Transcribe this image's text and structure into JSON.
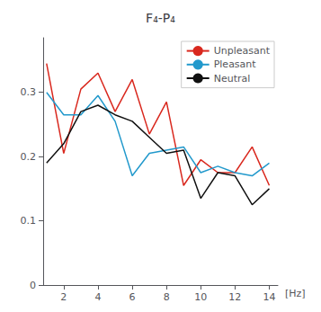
{
  "chart_data": {
    "type": "line",
    "title": "F₄-P₄",
    "x_label": "[Hz]",
    "x": [
      1,
      2,
      3,
      4,
      5,
      6,
      7,
      8,
      9,
      10,
      11,
      12,
      13,
      14
    ],
    "series": [
      {
        "name": "Unpleasant",
        "color": "#d9281e",
        "values": [
          0.345,
          0.205,
          0.305,
          0.33,
          0.27,
          0.32,
          0.235,
          0.285,
          0.155,
          0.195,
          0.175,
          0.175,
          0.215,
          0.155
        ]
      },
      {
        "name": "Pleasant",
        "color": "#2299cc",
        "values": [
          0.3,
          0.265,
          0.265,
          0.295,
          0.255,
          0.17,
          0.205,
          0.21,
          0.215,
          0.175,
          0.185,
          0.175,
          0.17,
          0.19
        ]
      },
      {
        "name": "Neutral",
        "color": "#111111",
        "values": [
          0.19,
          0.22,
          0.27,
          0.28,
          0.265,
          0.255,
          0.23,
          0.205,
          0.21,
          0.135,
          0.175,
          0.17,
          0.125,
          0.15
        ]
      }
    ],
    "xlim": [
      0.8,
      14.5
    ],
    "xticks": [
      2,
      4,
      6,
      8,
      10,
      12,
      14
    ],
    "ylim": [
      0,
      0.385
    ],
    "yticks": [
      0,
      0.1,
      0.2,
      0.3
    ],
    "grid": false,
    "legend": "upper right"
  }
}
